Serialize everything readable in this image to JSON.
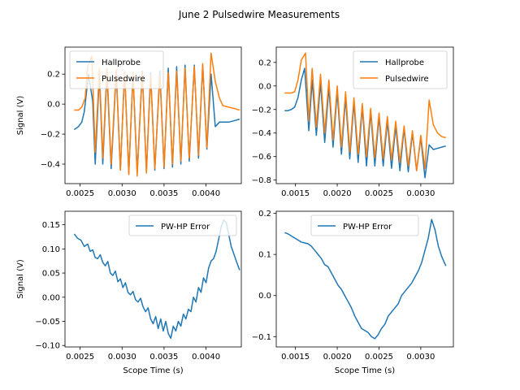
{
  "figure": {
    "title": "June 2 Pulsedwire Measurements",
    "colors": {
      "hallprobe": "#1f77b4",
      "pulsedwire": "#ff7f0e",
      "error": "#1f77b4"
    }
  },
  "chart_data": [
    {
      "type": "line",
      "panel": "top-left",
      "title": "",
      "xlabel": "",
      "ylabel": "Signal (V)",
      "xlim": [
        0.00232,
        0.00442
      ],
      "ylim": [
        -0.53,
        0.38
      ],
      "xticks": [
        0.0025,
        0.003,
        0.0035,
        0.004
      ],
      "xtick_labels": [
        "0.0025",
        "0.0030",
        "0.0035",
        "0.0040"
      ],
      "yticks": [
        -0.4,
        -0.2,
        0.0,
        0.2
      ],
      "ytick_labels": [
        "−0.4",
        "−0.2",
        "0.0",
        "0.2"
      ],
      "legend": {
        "placement": "top-left",
        "entries": [
          "Hallprobe",
          "Pulsedwire"
        ]
      },
      "series": [
        {
          "name": "Hallprobe",
          "color": "#1f77b4",
          "x": [
            0.00243,
            0.00248,
            0.00252,
            0.00255,
            0.0026,
            0.00265,
            0.00268,
            0.00273,
            0.00277,
            0.00282,
            0.00287,
            0.00293,
            0.00298,
            0.00303,
            0.00308,
            0.00313,
            0.00318,
            0.00324,
            0.00329,
            0.00334,
            0.00339,
            0.00345,
            0.0035,
            0.00355,
            0.0036,
            0.00365,
            0.0037,
            0.00375,
            0.0038,
            0.00386,
            0.00391,
            0.00396,
            0.00401,
            0.00406,
            0.00411,
            0.00416,
            0.0042,
            0.00427,
            0.00434,
            0.0044
          ],
          "y": [
            -0.17,
            -0.15,
            -0.12,
            -0.05,
            0.2,
            0.02,
            -0.4,
            0.2,
            -0.4,
            0.21,
            -0.43,
            0.21,
            -0.44,
            0.22,
            -0.46,
            0.2,
            -0.46,
            0.22,
            -0.45,
            0.21,
            -0.44,
            0.22,
            -0.43,
            0.24,
            -0.42,
            0.25,
            -0.4,
            0.26,
            -0.38,
            0.26,
            -0.36,
            0.26,
            -0.3,
            0.2,
            -0.15,
            -0.12,
            -0.12,
            -0.12,
            -0.11,
            -0.1
          ]
        },
        {
          "name": "Pulsedwire",
          "color": "#ff7f0e",
          "x": [
            0.00243,
            0.00248,
            0.00252,
            0.00256,
            0.00259,
            0.00264,
            0.00268,
            0.00273,
            0.00277,
            0.00282,
            0.00287,
            0.00293,
            0.00298,
            0.00303,
            0.00308,
            0.00313,
            0.00318,
            0.00324,
            0.00329,
            0.00334,
            0.00339,
            0.00345,
            0.0035,
            0.00355,
            0.0036,
            0.00365,
            0.0037,
            0.00375,
            0.0038,
            0.00386,
            0.00391,
            0.00396,
            0.00401,
            0.00406,
            0.00411,
            0.00416,
            0.0042,
            0.00427,
            0.00434,
            0.0044
          ],
          "y": [
            -0.04,
            -0.04,
            -0.02,
            0.04,
            0.25,
            0.32,
            -0.32,
            0.24,
            -0.36,
            0.24,
            -0.4,
            0.23,
            -0.44,
            0.22,
            -0.47,
            0.21,
            -0.48,
            0.21,
            -0.46,
            0.19,
            -0.43,
            0.19,
            -0.42,
            0.21,
            -0.4,
            0.22,
            -0.38,
            0.24,
            -0.36,
            0.25,
            -0.34,
            0.27,
            -0.29,
            0.34,
            0.15,
            0.04,
            -0.01,
            -0.02,
            -0.03,
            -0.04
          ]
        }
      ]
    },
    {
      "type": "line",
      "panel": "top-right",
      "title": "",
      "xlabel": "",
      "ylabel": "",
      "xlim": [
        0.00127,
        0.00339
      ],
      "ylim": [
        -0.83,
        0.33
      ],
      "xticks": [
        0.0015,
        0.002,
        0.0025,
        0.003
      ],
      "xtick_labels": [
        "0.0015",
        "0.0020",
        "0.0025",
        "0.0030"
      ],
      "yticks": [
        -0.8,
        -0.6,
        -0.4,
        -0.2,
        0.0,
        0.2
      ],
      "ytick_labels": [
        "−0.8",
        "−0.6",
        "−0.4",
        "−0.2",
        "0.0",
        "0.2"
      ],
      "legend": {
        "placement": "top-right",
        "entries": [
          "Hallprobe",
          "Pulsedwire"
        ]
      },
      "series": [
        {
          "name": "Hallprobe",
          "color": "#1f77b4",
          "x": [
            0.00137,
            0.00141,
            0.00145,
            0.00149,
            0.00153,
            0.00157,
            0.00161,
            0.00166,
            0.0017,
            0.00175,
            0.0018,
            0.00185,
            0.0019,
            0.00195,
            0.002,
            0.00205,
            0.0021,
            0.00215,
            0.0022,
            0.00225,
            0.0023,
            0.00235,
            0.0024,
            0.00245,
            0.0025,
            0.00255,
            0.0026,
            0.00265,
            0.0027,
            0.00275,
            0.0028,
            0.00285,
            0.0029,
            0.00295,
            0.003,
            0.00305,
            0.0031,
            0.00315,
            0.0032,
            0.00325,
            0.0033
          ],
          "y": [
            -0.21,
            -0.21,
            -0.2,
            -0.18,
            -0.1,
            0.05,
            0.15,
            -0.38,
            0.05,
            -0.42,
            0.03,
            -0.48,
            -0.01,
            -0.52,
            -0.05,
            -0.58,
            -0.1,
            -0.62,
            -0.14,
            -0.65,
            -0.18,
            -0.68,
            -0.22,
            -0.68,
            -0.26,
            -0.68,
            -0.3,
            -0.7,
            -0.34,
            -0.72,
            -0.36,
            -0.73,
            -0.4,
            -0.72,
            -0.44,
            -0.78,
            -0.5,
            -0.54,
            -0.53,
            -0.52,
            -0.51
          ]
        },
        {
          "name": "Pulsedwire",
          "color": "#ff7f0e",
          "x": [
            0.00137,
            0.00141,
            0.00145,
            0.00149,
            0.00153,
            0.00157,
            0.00162,
            0.00166,
            0.0017,
            0.00175,
            0.0018,
            0.00185,
            0.0019,
            0.00195,
            0.002,
            0.00205,
            0.0021,
            0.00215,
            0.0022,
            0.00225,
            0.0023,
            0.00235,
            0.0024,
            0.00245,
            0.0025,
            0.00255,
            0.0026,
            0.00265,
            0.0027,
            0.00275,
            0.0028,
            0.00285,
            0.0029,
            0.00295,
            0.003,
            0.00305,
            0.0031,
            0.00315,
            0.0032,
            0.00325,
            0.0033
          ],
          "y": [
            -0.06,
            -0.06,
            -0.06,
            -0.05,
            0.05,
            0.22,
            0.28,
            -0.3,
            0.15,
            -0.35,
            0.1,
            -0.4,
            0.05,
            -0.46,
            0.0,
            -0.52,
            -0.05,
            -0.56,
            -0.1,
            -0.58,
            -0.15,
            -0.6,
            -0.19,
            -0.61,
            -0.23,
            -0.62,
            -0.26,
            -0.63,
            -0.3,
            -0.65,
            -0.34,
            -0.68,
            -0.38,
            -0.72,
            -0.42,
            -0.7,
            -0.12,
            -0.33,
            -0.4,
            -0.43,
            -0.44
          ]
        }
      ]
    },
    {
      "type": "line",
      "panel": "bottom-left",
      "title": "",
      "xlabel": "Scope Time (s)",
      "ylabel": "Signal (V)",
      "xlim": [
        0.00232,
        0.00442
      ],
      "ylim": [
        -0.103,
        0.178
      ],
      "xticks": [
        0.0025,
        0.003,
        0.0035,
        0.004
      ],
      "xtick_labels": [
        "0.0025",
        "0.0030",
        "0.0035",
        "0.0040"
      ],
      "yticks": [
        -0.1,
        -0.05,
        0.0,
        0.05,
        0.1,
        0.15
      ],
      "ytick_labels": [
        "−0.10",
        "−0.05",
        "0.00",
        "0.05",
        "0.10",
        "0.15"
      ],
      "legend": {
        "placement": "top-right",
        "entries": [
          "PW-HP Error"
        ]
      },
      "series": [
        {
          "name": "PW-HP Error",
          "color": "#1f77b4",
          "x": [
            0.00243,
            0.00247,
            0.00251,
            0.00255,
            0.00259,
            0.00262,
            0.00265,
            0.00268,
            0.00271,
            0.00274,
            0.00277,
            0.0028,
            0.00283,
            0.00286,
            0.00289,
            0.00292,
            0.00295,
            0.00298,
            0.00301,
            0.00304,
            0.00307,
            0.0031,
            0.00313,
            0.00316,
            0.00319,
            0.00322,
            0.00325,
            0.00328,
            0.00331,
            0.00334,
            0.00337,
            0.0034,
            0.00343,
            0.00346,
            0.00349,
            0.00352,
            0.00355,
            0.00358,
            0.00361,
            0.00364,
            0.00367,
            0.0037,
            0.00373,
            0.00376,
            0.00379,
            0.00382,
            0.00385,
            0.00388,
            0.00391,
            0.00394,
            0.00397,
            0.004,
            0.00403,
            0.00406,
            0.00409,
            0.00412,
            0.00415,
            0.00418,
            0.00421,
            0.00424,
            0.00427,
            0.0043,
            0.00433,
            0.00436,
            0.0044
          ],
          "y": [
            0.131,
            0.122,
            0.118,
            0.105,
            0.11,
            0.095,
            0.098,
            0.082,
            0.08,
            0.088,
            0.072,
            0.065,
            0.074,
            0.05,
            0.045,
            0.054,
            0.032,
            0.038,
            0.02,
            0.03,
            0.01,
            0.005,
            0.012,
            -0.005,
            -0.01,
            -0.002,
            -0.02,
            -0.03,
            -0.022,
            -0.045,
            -0.055,
            -0.04,
            -0.065,
            -0.045,
            -0.07,
            -0.05,
            -0.075,
            -0.085,
            -0.06,
            -0.07,
            -0.05,
            -0.06,
            -0.035,
            -0.045,
            -0.025,
            -0.03,
            0.0,
            -0.01,
            0.02,
            0.01,
            0.04,
            0.03,
            0.06,
            0.075,
            0.08,
            0.095,
            0.12,
            0.145,
            0.16,
            0.155,
            0.13,
            0.105,
            0.09,
            0.075,
            0.056
          ]
        }
      ]
    },
    {
      "type": "line",
      "panel": "bottom-right",
      "title": "",
      "xlabel": "Scope Time (s)",
      "ylabel": "",
      "xlim": [
        0.00127,
        0.00339
      ],
      "ylim": [
        -0.125,
        0.205
      ],
      "xticks": [
        0.0015,
        0.002,
        0.0025,
        0.003
      ],
      "xtick_labels": [
        "0.0015",
        "0.0020",
        "0.0025",
        "0.0030"
      ],
      "yticks": [
        -0.1,
        0.0,
        0.1,
        0.2
      ],
      "ytick_labels": [
        "−0.1",
        "0.0",
        "0.1",
        "0.2"
      ],
      "legend": {
        "placement": "top-center",
        "entries": [
          "PW-HP Error"
        ]
      },
      "series": [
        {
          "name": "PW-HP Error",
          "color": "#1f77b4",
          "x": [
            0.00137,
            0.00141,
            0.00145,
            0.00149,
            0.00153,
            0.00157,
            0.00161,
            0.00165,
            0.00169,
            0.00173,
            0.00177,
            0.00181,
            0.00185,
            0.00189,
            0.00193,
            0.00197,
            0.00201,
            0.00205,
            0.00209,
            0.00213,
            0.00217,
            0.00221,
            0.00225,
            0.00229,
            0.00233,
            0.00237,
            0.00241,
            0.00245,
            0.00249,
            0.00253,
            0.00257,
            0.00261,
            0.00265,
            0.00269,
            0.00273,
            0.00277,
            0.00281,
            0.00285,
            0.00289,
            0.00293,
            0.00297,
            0.00301,
            0.00305,
            0.00309,
            0.00313,
            0.00317,
            0.00321,
            0.00325,
            0.0033
          ],
          "y": [
            0.153,
            0.15,
            0.145,
            0.14,
            0.135,
            0.13,
            0.128,
            0.126,
            0.12,
            0.11,
            0.1,
            0.09,
            0.075,
            0.07,
            0.055,
            0.04,
            0.025,
            0.015,
            0.0,
            -0.015,
            -0.03,
            -0.05,
            -0.065,
            -0.08,
            -0.085,
            -0.09,
            -0.1,
            -0.105,
            -0.095,
            -0.08,
            -0.07,
            -0.05,
            -0.04,
            -0.03,
            -0.02,
            0.0,
            0.01,
            0.02,
            0.03,
            0.045,
            0.06,
            0.08,
            0.11,
            0.14,
            0.185,
            0.16,
            0.12,
            0.095,
            0.072
          ]
        }
      ]
    }
  ]
}
